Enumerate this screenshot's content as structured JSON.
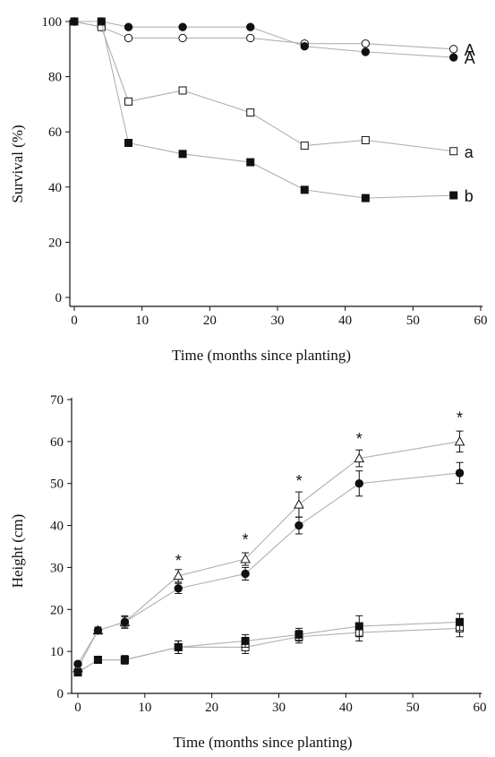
{
  "chart_data": [
    {
      "type": "line",
      "title": "",
      "xlabel": "Time (months since planting)",
      "ylabel": "Survival (%)",
      "xlim": [
        0,
        60
      ],
      "ylim": [
        0,
        100
      ],
      "xticks": [
        "0",
        "10",
        "20",
        "30",
        "40",
        "50",
        "60"
      ],
      "yticks": [
        "0",
        "20",
        "40",
        "60",
        "80",
        "100"
      ],
      "grid": false,
      "legend": "none",
      "series": [
        {
          "marker": "open-circle",
          "fill": "#ffffff",
          "x": [
            0,
            4,
            8,
            16,
            26,
            34,
            43,
            56
          ],
          "y": [
            100,
            98,
            94,
            94,
            94,
            92,
            92,
            90
          ],
          "label": "A"
        },
        {
          "marker": "filled-circle",
          "fill": "#111111",
          "x": [
            0,
            4,
            8,
            16,
            26,
            34,
            43,
            56
          ],
          "y": [
            100,
            100,
            98,
            98,
            98,
            91,
            89,
            87
          ],
          "label": "A"
        },
        {
          "marker": "open-square",
          "fill": "#ffffff",
          "x": [
            0,
            4,
            8,
            16,
            26,
            34,
            43,
            56
          ],
          "y": [
            100,
            98,
            71,
            75,
            67,
            55,
            57,
            53
          ],
          "label": "a"
        },
        {
          "marker": "filled-square",
          "fill": "#111111",
          "x": [
            0,
            4,
            8,
            16,
            26,
            34,
            43,
            56
          ],
          "y": [
            100,
            100,
            56,
            52,
            49,
            39,
            36,
            37
          ],
          "label": "b"
        }
      ],
      "annotations": []
    },
    {
      "type": "line",
      "title": "",
      "xlabel": "Time (months since planting)",
      "ylabel": "Height (cm)",
      "xlim": [
        0,
        60
      ],
      "ylim": [
        0,
        70
      ],
      "xticks": [
        "0",
        "10",
        "20",
        "30",
        "40",
        "50",
        "60"
      ],
      "yticks": [
        "0",
        "10",
        "20",
        "30",
        "40",
        "50",
        "60",
        "70"
      ],
      "grid": false,
      "legend": "none",
      "series": [
        {
          "marker": "open-triangle",
          "fill": "#ffffff",
          "x": [
            0,
            3,
            7,
            15,
            25,
            33,
            42,
            57
          ],
          "y": [
            6,
            15,
            17,
            28,
            32,
            45,
            56,
            60
          ],
          "err": [
            0.5,
            0.8,
            1.5,
            1.5,
            1.5,
            3,
            2,
            2.5
          ],
          "label": ""
        },
        {
          "marker": "filled-circle",
          "fill": "#111111",
          "x": [
            0,
            3,
            7,
            15,
            25,
            33,
            42,
            57
          ],
          "y": [
            7,
            15,
            17,
            25,
            28.5,
            40,
            50,
            52.5
          ],
          "err": [
            0.5,
            0.8,
            1.2,
            1.2,
            1.5,
            2,
            3,
            2.5
          ],
          "label": ""
        },
        {
          "marker": "open-square",
          "fill": "#ffffff",
          "x": [
            0,
            3,
            7,
            15,
            25,
            33,
            42,
            57
          ],
          "y": [
            5,
            8,
            8,
            11,
            11,
            13.5,
            14.5,
            15.5
          ],
          "err": [
            0.5,
            0.8,
            1.0,
            1.5,
            1.5,
            1.5,
            2,
            2
          ],
          "label": ""
        },
        {
          "marker": "filled-square",
          "fill": "#111111",
          "x": [
            0,
            3,
            7,
            15,
            25,
            33,
            42,
            57
          ],
          "y": [
            5,
            8,
            8,
            11,
            12.5,
            14,
            16,
            17
          ],
          "err": [
            0.5,
            0.8,
            1.0,
            1.5,
            1.5,
            1.5,
            2.5,
            2
          ],
          "label": ""
        }
      ],
      "annotations": [
        {
          "text": "*",
          "x": 15,
          "y": 32
        },
        {
          "text": "*",
          "x": 25,
          "y": 37
        },
        {
          "text": "*",
          "x": 33,
          "y": 51
        },
        {
          "text": "*",
          "x": 42,
          "y": 61
        },
        {
          "text": "*",
          "x": 57,
          "y": 66
        }
      ]
    }
  ]
}
